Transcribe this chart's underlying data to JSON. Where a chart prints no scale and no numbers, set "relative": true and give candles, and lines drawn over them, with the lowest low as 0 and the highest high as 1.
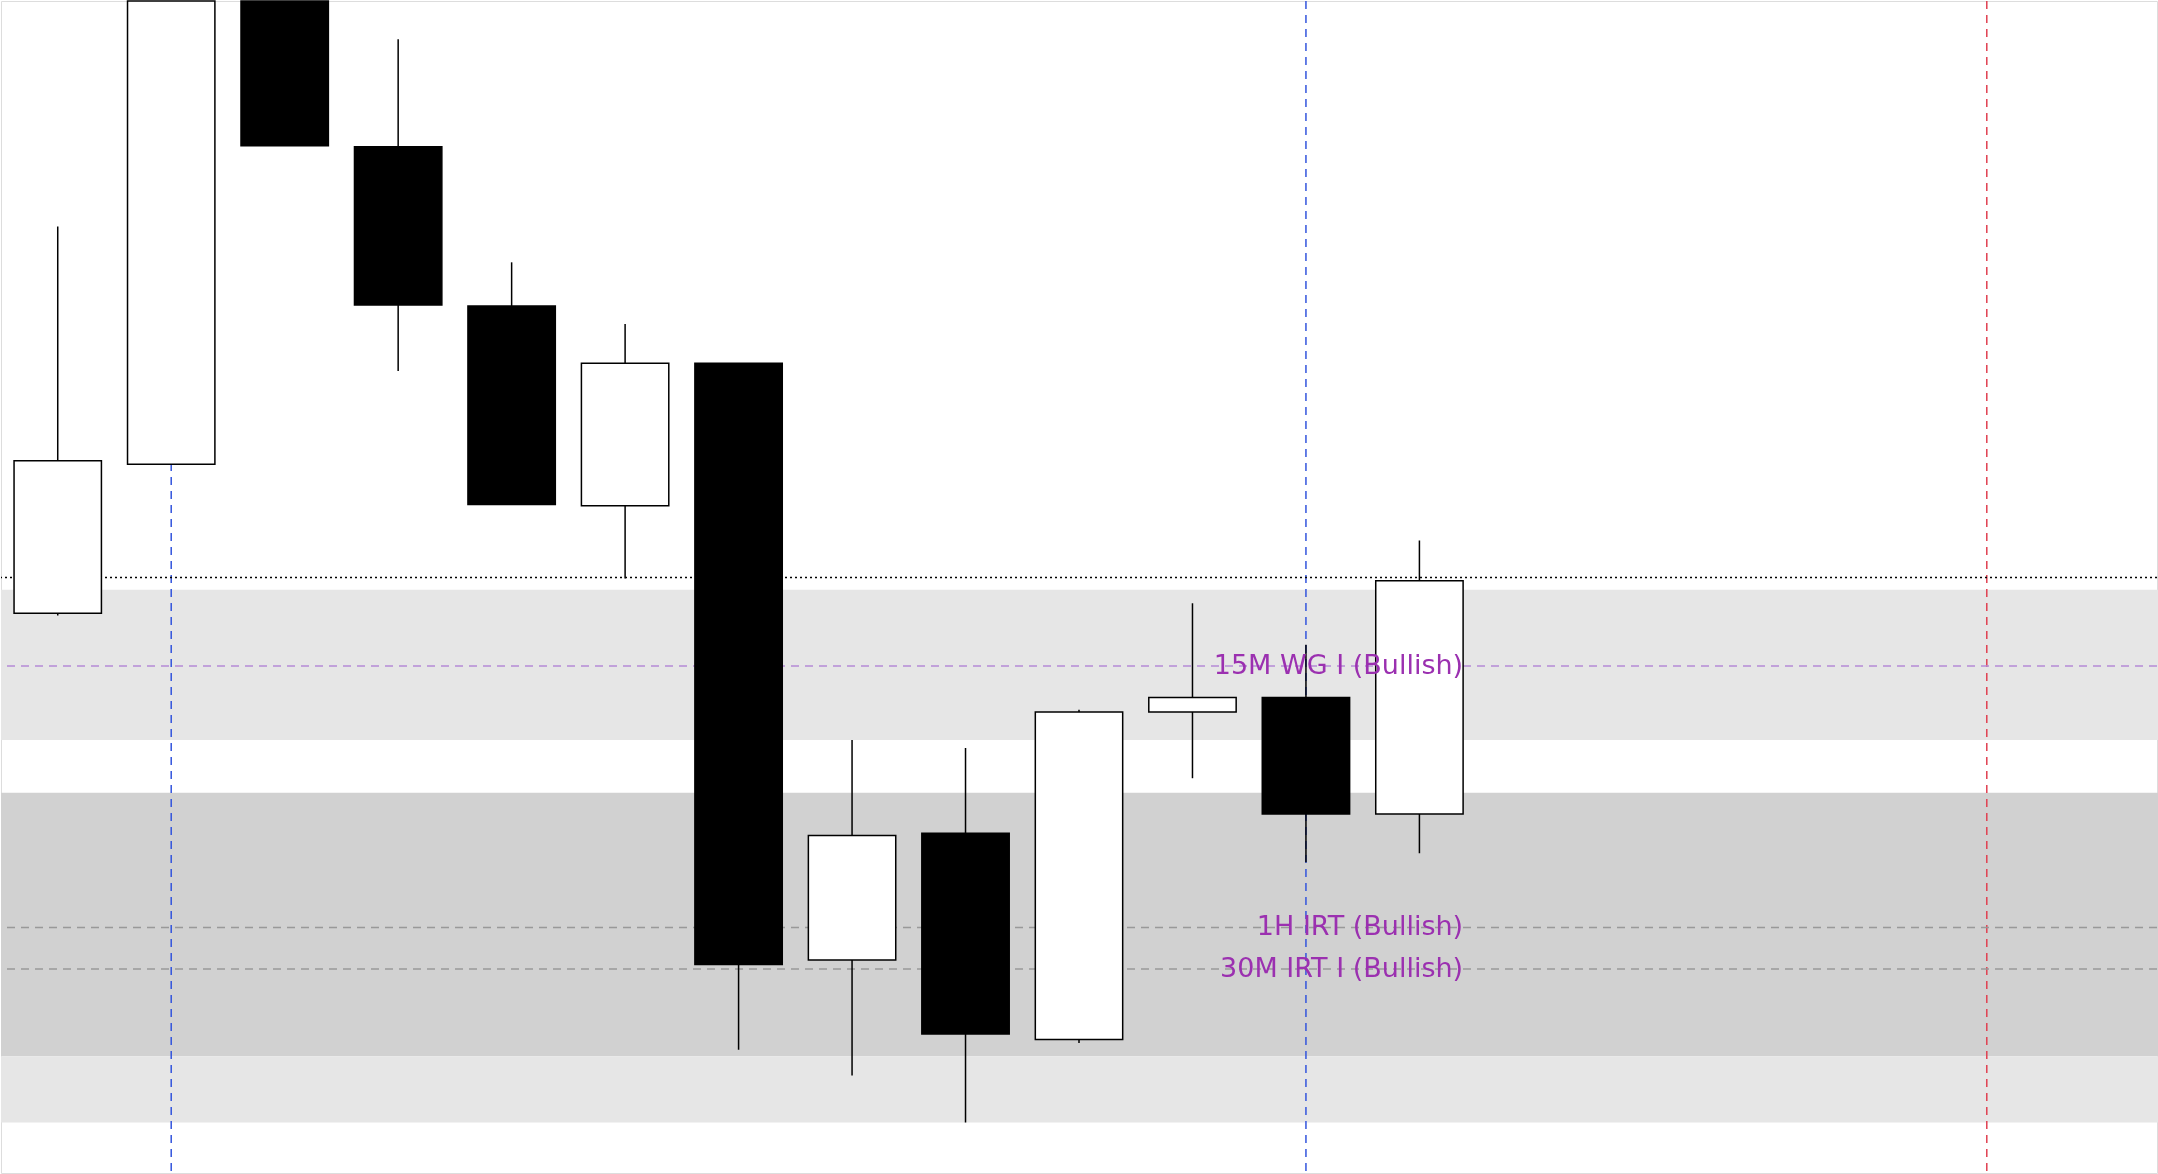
{
  "chart_data": {
    "type": "candlestick",
    "relative": true,
    "tick_labels": false,
    "grid": false,
    "categories": [
      null,
      null,
      null,
      null,
      null,
      null,
      null,
      null,
      null,
      null,
      null,
      null,
      null,
      null,
      null,
      null,
      null,
      null,
      null
    ],
    "ohlc": [
      [
        0.454,
        0.799,
        0.452,
        0.59
      ],
      [
        0.587,
        1.0,
        0.587,
        1.0
      ],
      [
        1.0,
        1.0,
        0.871,
        0.871
      ],
      [
        0.87,
        0.966,
        0.67,
        0.729
      ],
      [
        0.728,
        0.767,
        0.551,
        0.551
      ],
      [
        0.55,
        0.712,
        0.485,
        0.677
      ],
      [
        0.677,
        0.677,
        0.065,
        0.141
      ],
      [
        0.145,
        0.341,
        0.042,
        0.256
      ],
      [
        0.258,
        0.334,
        0.0,
        0.079
      ],
      [
        0.074,
        0.368,
        0.071,
        0.366
      ],
      [
        0.366,
        0.463,
        0.307,
        0.379
      ],
      [
        0.379,
        0.426,
        0.232,
        0.275
      ],
      [
        0.275,
        0.519,
        0.24,
        0.483
      ],
      null,
      null,
      null,
      null,
      null,
      null
    ],
    "bands": [
      {
        "axis": "y",
        "from": 0.341,
        "to": 0.475,
        "color": "#e6e6e6"
      },
      {
        "axis": "y",
        "from": 0.059,
        "to": 0.294,
        "color": "#d1d1d1"
      },
      {
        "axis": "y",
        "from": 0.0,
        "to": 0.059,
        "color": "#e6e6e6"
      }
    ],
    "ref_lines": [
      {
        "axis": "y",
        "value": 0.486,
        "color": "#000000",
        "line_style": "dotted"
      },
      {
        "axis": "y",
        "value": 0.407,
        "color": "#b58ad6",
        "line_style": "dashed",
        "label": "15M WG I (Bullish)"
      },
      {
        "axis": "y",
        "value": 0.174,
        "color": "#999999",
        "line_style": "dashed",
        "label": "1H IRT (Bullish)"
      },
      {
        "axis": "y",
        "value": 0.137,
        "color": "#999999",
        "line_style": "dashed",
        "label": "30M IRT I (Bullish)"
      }
    ]
  }
}
